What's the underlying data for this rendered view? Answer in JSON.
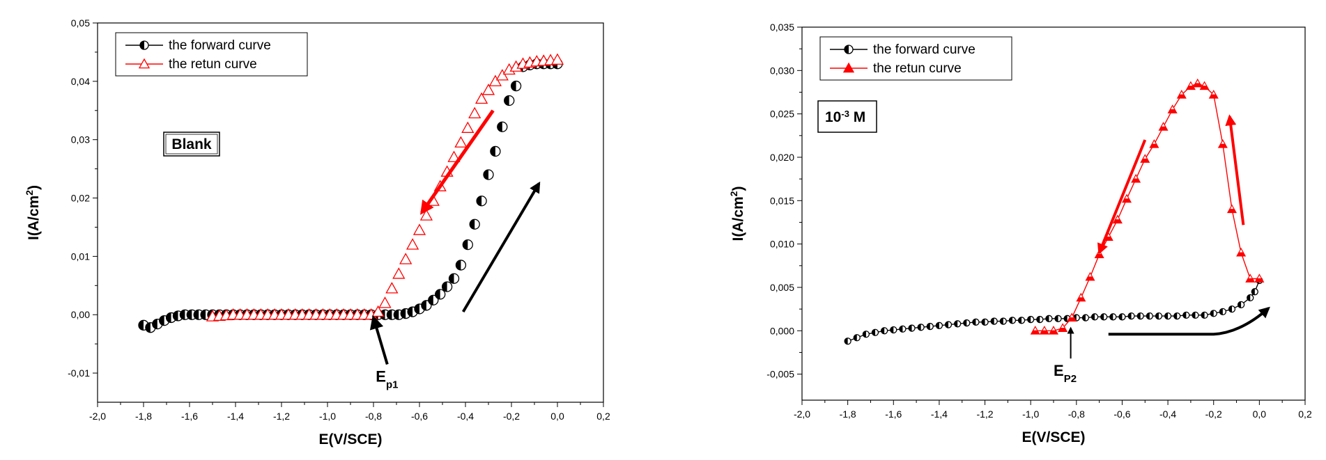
{
  "chart_data": [
    {
      "type": "scatter",
      "xlabel": "E(V/SCE)",
      "ylabel": "I(A/cm2)",
      "xlim": [
        -2.0,
        0.2
      ],
      "ylim": [
        -0.015,
        0.05
      ],
      "xticks": [
        "-2,0",
        "-1,8",
        "-1,6",
        "-1,4",
        "-1,2",
        "-1,0",
        "-0,8",
        "-0,6",
        "-0,4",
        "-0,2",
        "0,0",
        "0,2"
      ],
      "yticks": [
        "-0,01",
        "0,00",
        "0,01",
        "0,02",
        "0,03",
        "0,04",
        "0,05"
      ],
      "xtick_values": [
        -2.0,
        -1.8,
        -1.6,
        -1.4,
        -1.2,
        -1.0,
        -0.8,
        -0.6,
        -0.4,
        -0.2,
        0.0,
        0.2
      ],
      "ytick_values": [
        -0.01,
        0.0,
        0.01,
        0.02,
        0.03,
        0.04,
        0.05
      ],
      "legend_position": "top-left",
      "label_box": "Blank",
      "annotation": {
        "main": "E",
        "sub": "p1",
        "points_to": [
          -0.8,
          0.0
        ]
      },
      "series": [
        {
          "name": "the forward curve",
          "color": "#000000",
          "marker": "half-filled-circle",
          "line": false,
          "x": [
            -1.8,
            -1.77,
            -1.74,
            -1.71,
            -1.68,
            -1.65,
            -1.62,
            -1.59,
            -1.56,
            -1.53,
            -1.5,
            -1.47,
            -1.44,
            -1.41,
            -1.38,
            -1.35,
            -1.32,
            -1.29,
            -1.26,
            -1.23,
            -1.2,
            -1.17,
            -1.14,
            -1.11,
            -1.08,
            -1.05,
            -1.02,
            -0.99,
            -0.96,
            -0.93,
            -0.9,
            -0.87,
            -0.84,
            -0.81,
            -0.78,
            -0.75,
            -0.72,
            -0.69,
            -0.66,
            -0.63,
            -0.6,
            -0.57,
            -0.54,
            -0.51,
            -0.48,
            -0.45,
            -0.42,
            -0.39,
            -0.36,
            -0.33,
            -0.3,
            -0.27,
            -0.24,
            -0.21,
            -0.18,
            -0.15,
            -0.12,
            -0.09,
            -0.06,
            -0.03,
            0.0
          ],
          "y": [
            -0.0018,
            -0.0022,
            -0.0016,
            -0.001,
            -0.0005,
            -0.0002,
            0.0,
            0.0,
            0.0,
            0.0,
            0.0,
            0.0,
            0.0,
            0.0,
            0.0,
            0.0,
            0.0,
            0.0,
            0.0,
            0.0,
            0.0,
            0.0,
            0.0,
            0.0,
            0.0,
            0.0,
            0.0,
            0.0,
            0.0,
            0.0,
            0.0,
            0.0,
            0.0,
            0.0,
            0.0,
            0.0,
            0.0,
            0.0,
            0.0002,
            0.0005,
            0.001,
            0.0016,
            0.0025,
            0.0035,
            0.0048,
            0.0062,
            0.0085,
            0.012,
            0.0155,
            0.0195,
            0.024,
            0.028,
            0.0322,
            0.0367,
            0.0392,
            0.0425,
            0.0428,
            0.043,
            0.043,
            0.043,
            0.043
          ]
        },
        {
          "name": "the retun curve",
          "color": "#ff0000",
          "marker": "open-triangle",
          "line": false,
          "x": [
            -1.5,
            -1.47,
            -1.44,
            -1.41,
            -1.38,
            -1.35,
            -1.32,
            -1.29,
            -1.26,
            -1.23,
            -1.2,
            -1.17,
            -1.14,
            -1.11,
            -1.08,
            -1.05,
            -1.02,
            -0.99,
            -0.96,
            -0.93,
            -0.9,
            -0.87,
            -0.84,
            -0.81,
            -0.78,
            -0.75,
            -0.72,
            -0.69,
            -0.66,
            -0.63,
            -0.6,
            -0.57,
            -0.54,
            -0.51,
            -0.48,
            -0.45,
            -0.42,
            -0.39,
            -0.36,
            -0.33,
            -0.3,
            -0.27,
            -0.24,
            -0.21,
            -0.18,
            -0.15,
            -0.12,
            -0.09,
            -0.06,
            -0.03,
            0.0
          ],
          "y": [
            -0.0003,
            -0.0002,
            -0.0001,
            0.0,
            0.0,
            0.0,
            0.0,
            0.0,
            0.0,
            0.0,
            0.0,
            0.0,
            0.0,
            0.0,
            0.0,
            0.0,
            0.0,
            0.0,
            0.0,
            0.0,
            0.0,
            0.0,
            0.0,
            0.0,
            0.0005,
            0.002,
            0.0045,
            0.007,
            0.0095,
            0.012,
            0.0145,
            0.017,
            0.0195,
            0.022,
            0.0245,
            0.027,
            0.0295,
            0.032,
            0.0345,
            0.037,
            0.0385,
            0.04,
            0.041,
            0.042,
            0.0425,
            0.043,
            0.0432,
            0.0434,
            0.0435,
            0.0436,
            0.0437
          ]
        }
      ]
    },
    {
      "type": "line",
      "xlabel": "E(V/SCE)",
      "ylabel": "I(A/cm2)",
      "xlim": [
        -2.0,
        0.2
      ],
      "ylim": [
        -0.008,
        0.035
      ],
      "xticks": [
        "-2,0",
        "-1,8",
        "-1,6",
        "-1,4",
        "-1,2",
        "-1,0",
        "-0,8",
        "-0,6",
        "-0,4",
        "-0,2",
        "0,0",
        "0,2"
      ],
      "yticks": [
        "-0,005",
        "0,000",
        "0,005",
        "0,010",
        "0,015",
        "0,020",
        "0,025",
        "0,030",
        "0,035"
      ],
      "xtick_values": [
        -2.0,
        -1.8,
        -1.6,
        -1.4,
        -1.2,
        -1.0,
        -0.8,
        -0.6,
        -0.4,
        -0.2,
        0.0,
        0.2
      ],
      "ytick_values": [
        -0.005,
        0.0,
        0.005,
        0.01,
        0.015,
        0.02,
        0.025,
        0.03,
        0.035
      ],
      "legend_position": "top-left",
      "label_box": {
        "main": "10",
        "sup": "-3",
        "unit": " M"
      },
      "annotation": {
        "main": "E",
        "sub": "P2",
        "points_to": [
          -0.82,
          0.0015
        ]
      },
      "series": [
        {
          "name": "the forward curve",
          "color": "#000000",
          "marker": "half-filled-circle",
          "line": true,
          "x": [
            -1.8,
            -1.76,
            -1.72,
            -1.68,
            -1.64,
            -1.6,
            -1.56,
            -1.52,
            -1.48,
            -1.44,
            -1.4,
            -1.36,
            -1.32,
            -1.28,
            -1.24,
            -1.2,
            -1.16,
            -1.12,
            -1.08,
            -1.04,
            -1.0,
            -0.96,
            -0.92,
            -0.88,
            -0.84,
            -0.8,
            -0.76,
            -0.72,
            -0.68,
            -0.64,
            -0.6,
            -0.56,
            -0.52,
            -0.48,
            -0.44,
            -0.4,
            -0.36,
            -0.32,
            -0.28,
            -0.24,
            -0.2,
            -0.16,
            -0.12,
            -0.08,
            -0.04,
            -0.02,
            0.0
          ],
          "y": [
            -0.0012,
            -0.0008,
            -0.0004,
            -0.0002,
            0.0,
            0.0001,
            0.0002,
            0.0003,
            0.0004,
            0.0005,
            0.0006,
            0.0007,
            0.0008,
            0.0009,
            0.001,
            0.001,
            0.0011,
            0.0011,
            0.0012,
            0.0012,
            0.0013,
            0.0013,
            0.0014,
            0.0014,
            0.0014,
            0.0015,
            0.0015,
            0.0016,
            0.0016,
            0.0016,
            0.0016,
            0.0017,
            0.0017,
            0.0017,
            0.0017,
            0.0017,
            0.0017,
            0.0018,
            0.0018,
            0.0018,
            0.002,
            0.0022,
            0.0025,
            0.003,
            0.0038,
            0.0045,
            0.0058
          ]
        },
        {
          "name": "the retun curve",
          "color": "#ff0000",
          "marker": "half-filled-triangle",
          "line": true,
          "x": [
            -0.98,
            -0.94,
            -0.9,
            -0.86,
            -0.82,
            -0.78,
            -0.74,
            -0.7,
            -0.66,
            -0.62,
            -0.58,
            -0.54,
            -0.5,
            -0.46,
            -0.42,
            -0.38,
            -0.34,
            -0.3,
            -0.27,
            -0.24,
            -0.2,
            -0.16,
            -0.12,
            -0.08,
            -0.04,
            0.0
          ],
          "y": [
            0.0,
            0.0,
            0.0,
            0.0003,
            0.0015,
            0.0038,
            0.0062,
            0.0088,
            0.0108,
            0.0128,
            0.0152,
            0.0175,
            0.0198,
            0.0215,
            0.0235,
            0.0255,
            0.0272,
            0.0282,
            0.0285,
            0.0282,
            0.0272,
            0.0215,
            0.014,
            0.009,
            0.006,
            0.006
          ]
        }
      ]
    }
  ]
}
